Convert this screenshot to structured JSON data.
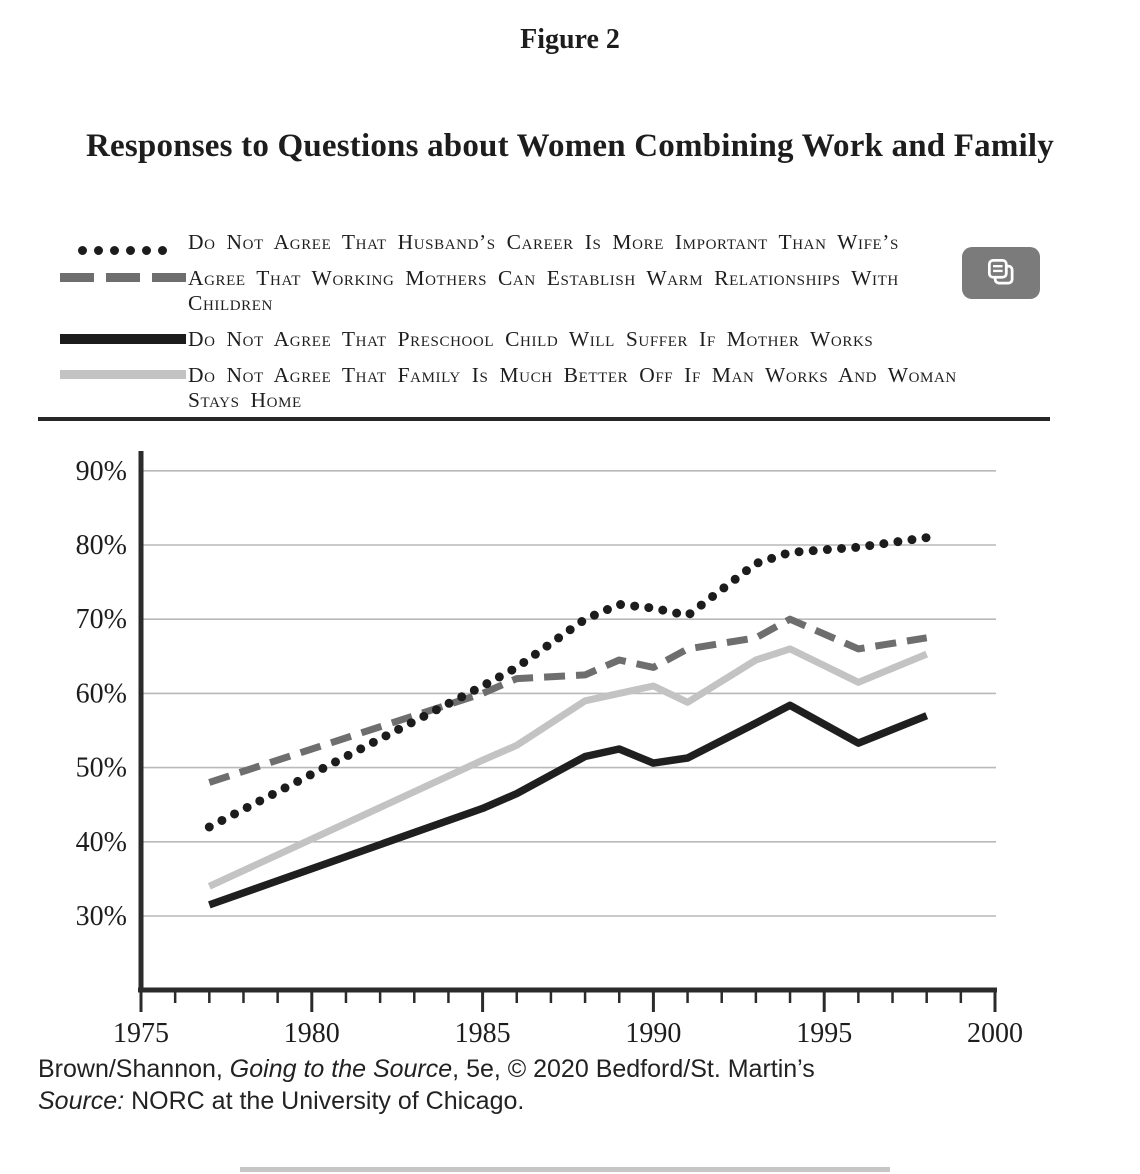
{
  "figure_label": "Figure 2",
  "title": "Responses to Questions about Women Combining Work and Family",
  "legend": {
    "items": [
      {
        "label": "Do Not Agree That Husband’s Career Is More Important Than Wife’s",
        "style": "dotted-black"
      },
      {
        "label": "Agree That Working Mothers Can Establish Warm Relationships With Children",
        "style": "dashed-gray"
      },
      {
        "label": "Do Not Agree That Preschool Child Will Suffer If Mother Works",
        "style": "solid-black"
      },
      {
        "label": "Do Not Agree That Family Is Much Better Off If Man Works And Woman Stays Home",
        "style": "solid-light-gray"
      }
    ]
  },
  "overlay": {
    "copy_button_icon": "copy-pages-icon"
  },
  "chart_data": {
    "type": "line",
    "title": "Responses to Questions about Women Combining Work and Family",
    "x": [
      1977,
      1985,
      1986,
      1988,
      1989,
      1990,
      1991,
      1993,
      1994,
      1996,
      1998
    ],
    "series": [
      {
        "name": "Do Not Agree That Husband’s Career Is More Important Than Wife’s",
        "style": "dotted-black",
        "values": [
          42,
          61,
          63.5,
          70,
          72,
          71.5,
          70.5,
          77.5,
          79,
          79.7,
          81
        ]
      },
      {
        "name": "Agree That Working Mothers Can Establish Warm Relationships With Children",
        "style": "dashed-gray",
        "values": [
          48,
          60,
          62,
          62.5,
          64.5,
          63.5,
          66,
          67.5,
          70,
          66,
          67.5
        ]
      },
      {
        "name": "Do Not Agree That Preschool Child Will Suffer If Mother Works",
        "style": "solid-black",
        "values": [
          31.5,
          44.5,
          46.5,
          51.5,
          52.5,
          50.6,
          51.3,
          56,
          58.4,
          53.3,
          57
        ]
      },
      {
        "name": "Do Not Agree That Family Is Much Better Off If Man Works And Woman Stays Home",
        "style": "solid-light-gray",
        "values": [
          34,
          51,
          53,
          59,
          60,
          61,
          58.8,
          64.5,
          66,
          61.5,
          65.3
        ]
      }
    ],
    "x_axis": {
      "min": 1975,
      "max": 2000,
      "tick_step": 1,
      "label_step": 5,
      "tick_labels": [
        "1975",
        "1980",
        "1985",
        "1990",
        "1995",
        "2000"
      ]
    },
    "y_axis": {
      "min": 30,
      "max": 90,
      "step": 10,
      "suffix": "%",
      "tick_labels": [
        "30%",
        "40%",
        "50%",
        "60%",
        "70%",
        "80%",
        "90%"
      ]
    },
    "grid": true,
    "legend_position": "top"
  },
  "footer": {
    "credit_prefix": "Brown/Shannon, ",
    "credit_italic": "Going to the Source",
    "credit_suffix": ", 5e, © 2020 Bedford/St. Martin’s",
    "source_label": "Source:",
    "source_text": " NORC at the University of Chicago."
  },
  "colors": {
    "dotted_black": "#1c1c1c",
    "dashed_gray": "#6e6e6e",
    "solid_black": "#1f1f1f",
    "solid_light_gray": "#c3c3c3",
    "gridline": "#b9b9b9",
    "axis": "#2b2b2b",
    "copy_button_bg": "#7b7b7b",
    "bottom_bar": "#c6c6c6"
  }
}
